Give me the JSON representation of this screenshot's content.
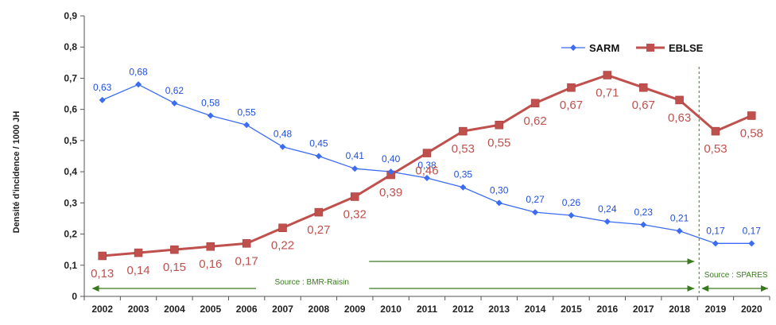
{
  "chart_data": {
    "type": "line",
    "title": "",
    "xlabel": "",
    "ylabel": "Densité d'incidence / 1000 JH",
    "ylim": [
      0,
      0.9
    ],
    "y_ticks": [
      "0",
      "0,1",
      "0,2",
      "0,3",
      "0,4",
      "0,5",
      "0,6",
      "0,7",
      "0,8",
      "0,9"
    ],
    "y_tick_values": [
      0,
      0.1,
      0.2,
      0.3,
      0.4,
      0.5,
      0.6,
      0.7,
      0.8,
      0.9
    ],
    "categories": [
      "2002",
      "2003",
      "2004",
      "2005",
      "2006",
      "2007",
      "2008",
      "2009",
      "2010",
      "2011",
      "2012",
      "2013",
      "2014",
      "2015",
      "2016",
      "2017",
      "2018",
      "2019",
      "2020"
    ],
    "legend_position": "top-right",
    "series": [
      {
        "name": "SARM",
        "color": "#3b6cf2",
        "marker": "diamond",
        "values": [
          0.63,
          0.68,
          0.62,
          0.58,
          0.55,
          0.48,
          0.45,
          0.41,
          0.4,
          0.38,
          0.35,
          0.3,
          0.27,
          0.26,
          0.24,
          0.23,
          0.21,
          0.17,
          0.17
        ],
        "labels": [
          "0,63",
          "0,68",
          "0,62",
          "0,58",
          "0,55",
          "0,48",
          "0,45",
          "0,41",
          "0,40",
          "0,38",
          "0,35",
          "0,30",
          "0,27",
          "0,26",
          "0,24",
          "0,23",
          "0,21",
          "0,17",
          "0,17"
        ]
      },
      {
        "name": "EBLSE",
        "legend_label": "EBLSE",
        "color": "#c0504d",
        "marker": "square",
        "values": [
          0.13,
          0.14,
          0.15,
          0.16,
          0.17,
          0.22,
          0.27,
          0.32,
          0.39,
          0.46,
          0.53,
          0.55,
          0.62,
          0.67,
          0.71,
          0.67,
          0.63,
          0.53,
          0.58
        ],
        "labels": [
          "0,13",
          "0,14",
          "0,15",
          "0,16",
          "0,17",
          "0,22",
          "0,27",
          "0,32",
          "0,39",
          "0,46",
          "0,53",
          "0,55",
          "0,62",
          "0,67",
          "0,71",
          "0,67",
          "0,63",
          "0,53",
          "0,58"
        ]
      }
    ],
    "annotations": {
      "source_1": "Source : BMR-Raisin",
      "source_2": "Source : SPARES",
      "divider_between": [
        "2018",
        "2019"
      ],
      "divider_color": "#3a7a1e"
    }
  }
}
